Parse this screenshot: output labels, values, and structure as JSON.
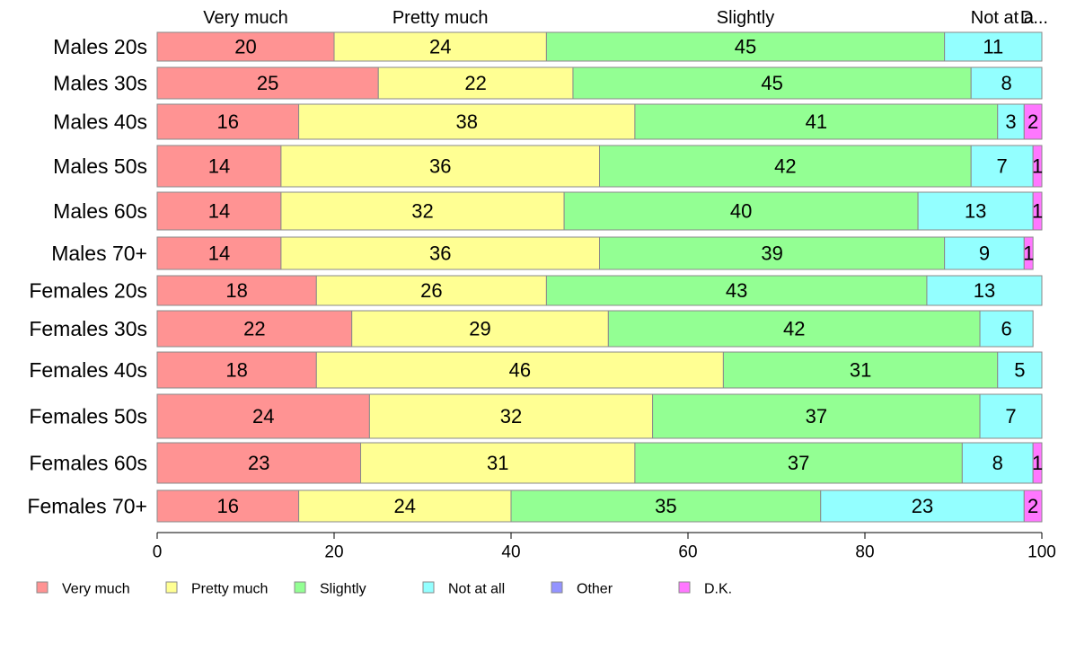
{
  "chart_data": {
    "type": "bar",
    "orientation": "horizontal",
    "stacked": true,
    "categories": [
      "Males 20s",
      "Males 30s",
      "Males 40s",
      "Males 50s",
      "Males 60s",
      "Males 70+",
      "Females 20s",
      "Females 30s",
      "Females 40s",
      "Females 50s",
      "Females 60s",
      "Females 70+"
    ],
    "series": [
      {
        "name": "Very much",
        "color": "#ff9393",
        "values": [
          20,
          25,
          16,
          14,
          14,
          14,
          18,
          22,
          18,
          24,
          23,
          16
        ]
      },
      {
        "name": "Pretty much",
        "color": "#ffff93",
        "values": [
          24,
          22,
          38,
          36,
          32,
          36,
          26,
          29,
          46,
          32,
          31,
          24
        ]
      },
      {
        "name": "Slightly",
        "color": "#93ff93",
        "values": [
          45,
          45,
          41,
          42,
          40,
          39,
          43,
          42,
          31,
          37,
          37,
          35
        ]
      },
      {
        "name": "Not at all",
        "color": "#93ffff",
        "values": [
          11,
          8,
          3,
          7,
          13,
          9,
          13,
          6,
          5,
          7,
          8,
          23
        ]
      },
      {
        "name": "Other",
        "color": "#9393ff",
        "values": [
          0,
          0,
          0,
          0,
          0,
          0,
          0,
          0,
          0,
          0,
          0,
          0
        ]
      },
      {
        "name": "D.K.",
        "color": "#ff77ff",
        "values": [
          0,
          0,
          2,
          1,
          1,
          1,
          0,
          0,
          0,
          0,
          1,
          2
        ]
      }
    ],
    "segment_labels": [
      [
        "20",
        "24",
        "45",
        "11",
        "",
        ""
      ],
      [
        "25",
        "22",
        "45",
        "8",
        "",
        ""
      ],
      [
        "16",
        "38",
        "41",
        "3",
        "",
        "2"
      ],
      [
        "14",
        "36",
        "42",
        "7",
        "",
        "1"
      ],
      [
        "14",
        "32",
        "40",
        "13",
        "",
        "1"
      ],
      [
        "14",
        "36",
        "39",
        "9",
        "",
        "1"
      ],
      [
        "18",
        "26",
        "43",
        "13",
        "",
        ""
      ],
      [
        "22",
        "29",
        "42",
        "6",
        "",
        ""
      ],
      [
        "18",
        "46",
        "31",
        "5",
        "",
        ""
      ],
      [
        "24",
        "32",
        "37",
        "7",
        "",
        ""
      ],
      [
        "23",
        "31",
        "37",
        "8",
        "",
        "1"
      ],
      [
        "16",
        "24",
        "35",
        "23",
        "",
        "2"
      ]
    ],
    "top_labels": [
      "Very much",
      "Pretty much",
      "Slightly",
      "Not at a",
      "D..."
    ],
    "xlim": [
      0,
      100
    ],
    "xticks": [
      0,
      20,
      40,
      60,
      80,
      100
    ],
    "xtick_labels": [
      "0",
      "20",
      "40",
      "60",
      "80",
      "100"
    ],
    "grid": false,
    "legend": {
      "position": "bottom",
      "entries": [
        "Very much",
        "Pretty much",
        "Slightly",
        "Not at all",
        "Other",
        "D.K."
      ]
    }
  }
}
